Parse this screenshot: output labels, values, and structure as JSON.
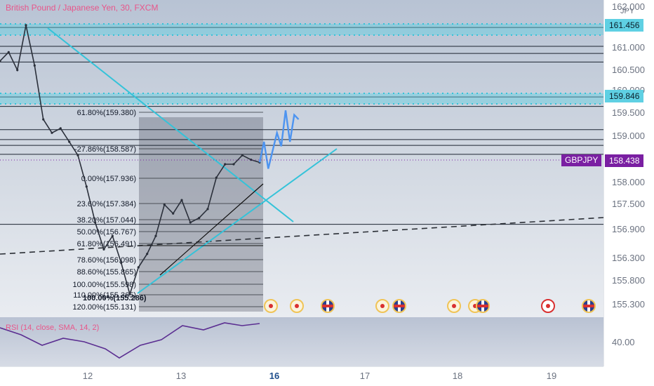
{
  "chart": {
    "title": "British Pound / Japanese Yen, 30, FXCM",
    "symbol": "GBPJPY",
    "currency": "JPY",
    "current_price": "158.438"
  },
  "colors": {
    "accent_pink": "#e8568a",
    "cyan_line": "#34c3d9",
    "badge_purple": "#7a1fa2",
    "price_tag_cyan": "#5fd0e3",
    "projection_blue": "#4d94f0",
    "rsi_line": "#5b2e91"
  },
  "price_axis": {
    "labels": [
      "162.000",
      "161.000",
      "160.500",
      "160.000",
      "159.500",
      "159.000",
      "158.000",
      "157.500",
      "156.900",
      "156.300",
      "155.800",
      "155.300"
    ],
    "highlighted_levels": [
      "161.456",
      "159.846"
    ]
  },
  "time_axis": {
    "labels": [
      "12",
      "13",
      "16",
      "17",
      "18",
      "19"
    ],
    "major_label": "16"
  },
  "rsi": {
    "label": "RSI (14, close, SMA, 14, 2)",
    "level_label": "40.00"
  },
  "fibonacci": {
    "levels": [
      "61.80%(159.380)",
      "-27.86%(158.587)",
      "0.00%(157.936)",
      "23.60%(157.384)",
      "38.20%(157.044)",
      "50.00%(156.767)",
      "61.80%(156.491)",
      "78.60%(156.098)",
      "88.60%(155.865)",
      "100.00%(155.598)",
      "110.00%(155.365)",
      "120.00%(155.131)"
    ],
    "overlap_label": "100.00%(155.286)"
  },
  "event_markers": [
    "dot",
    "dot",
    "uk",
    "dot",
    "uk",
    "dot",
    "dot",
    "uk",
    "red-ring",
    "uk"
  ],
  "chart_data": {
    "type": "line",
    "price_axis_range": [
      155.05,
      162.05
    ],
    "time_ticks": [
      "12",
      "13",
      "16",
      "17",
      "18",
      "19"
    ],
    "horizontal_levels": [
      161.45,
      161.03,
      160.87,
      160.68,
      159.9,
      159.69,
      159.17,
      158.95,
      158.82,
      158.62,
      157.06
    ],
    "rsi_axis_tick": "40.00",
    "series": [
      {
        "x": [
          0,
          0.4,
          0.8,
          1.2,
          1.6,
          2.0,
          2.4,
          2.8,
          3.2,
          3.6,
          4.0,
          4.4,
          4.8,
          5.2,
          5.6,
          6.0,
          6.4,
          6.8,
          7.2,
          7.6,
          8.0,
          8.4,
          8.8,
          9.2,
          9.6,
          10.0,
          10.4,
          10.8,
          11.2,
          11.6,
          12.0
        ],
        "values": [
          160.7,
          160.9,
          160.5,
          161.5,
          160.6,
          159.4,
          159.1,
          159.2,
          158.9,
          158.6,
          157.9,
          157.1,
          156.5,
          156.8,
          156.2,
          155.5,
          156.1,
          156.4,
          156.8,
          157.5,
          157.3,
          157.6,
          157.1,
          157.2,
          157.4,
          158.1,
          158.4,
          158.4,
          158.6,
          158.5,
          158.44
        ]
      },
      {
        "x": [
          12.0,
          12.2,
          12.4,
          12.6,
          12.8,
          13.0,
          13.2,
          13.4,
          13.6,
          13.8
        ],
        "values": [
          158.44,
          158.9,
          158.3,
          158.7,
          159.1,
          158.8,
          159.6,
          158.9,
          159.5,
          159.4
        ]
      }
    ],
    "legend": "none",
    "grid": false
  }
}
